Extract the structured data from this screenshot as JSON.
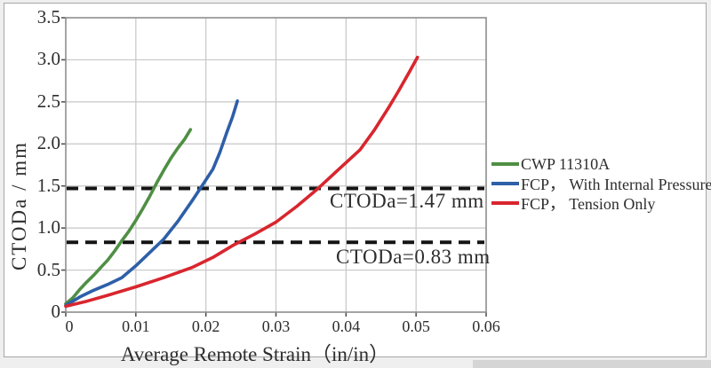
{
  "chart_data": {
    "type": "line",
    "title": "",
    "xlabel": "Average Remote Strain（in/in）",
    "ylabel": "CTODa / mm",
    "xlim": [
      0,
      0.06
    ],
    "ylim": [
      0,
      3.5
    ],
    "grid": true,
    "legend_position": "right of plot",
    "xticks": [
      0,
      0.01,
      0.02,
      0.03,
      0.04,
      0.05,
      0.06
    ],
    "xtick_labels": [
      "0",
      "0.01",
      "0.02",
      "0.03",
      "0.04",
      "0.05",
      "0.06"
    ],
    "yticks": [
      0,
      0.5,
      1.0,
      1.5,
      2.0,
      2.5,
      3.0,
      3.5
    ],
    "ytick_labels": [
      "0",
      "0.5",
      "1.0",
      "1.5",
      "2.0",
      "2.5",
      "3.0",
      "3.5"
    ],
    "colors": {
      "grid": "#c7c7c7",
      "axis": "#8e8e8e",
      "tick": "#4a4a4a",
      "reference_line": "#141414",
      "text": "#2d2d2d"
    },
    "series": [
      {
        "name": "CWP 11310A",
        "color": "#4f8f44",
        "points": [
          [
            0,
            0.1
          ],
          [
            0.001,
            0.17
          ],
          [
            0.002,
            0.27
          ],
          [
            0.003,
            0.36
          ],
          [
            0.004,
            0.44
          ],
          [
            0.005,
            0.53
          ],
          [
            0.006,
            0.62
          ],
          [
            0.007,
            0.73
          ],
          [
            0.008,
            0.85
          ],
          [
            0.009,
            0.96
          ],
          [
            0.01,
            1.09
          ],
          [
            0.011,
            1.23
          ],
          [
            0.012,
            1.38
          ],
          [
            0.013,
            1.54
          ],
          [
            0.014,
            1.69
          ],
          [
            0.015,
            1.83
          ],
          [
            0.016,
            1.95
          ],
          [
            0.017,
            2.06
          ],
          [
            0.0178,
            2.17
          ]
        ]
      },
      {
        "name": "FCP， With Internal Pressure",
        "color": "#2e5fa8",
        "points": [
          [
            0,
            0.08
          ],
          [
            0.002,
            0.18
          ],
          [
            0.004,
            0.26
          ],
          [
            0.006,
            0.33
          ],
          [
            0.008,
            0.41
          ],
          [
            0.01,
            0.55
          ],
          [
            0.012,
            0.71
          ],
          [
            0.014,
            0.87
          ],
          [
            0.016,
            1.08
          ],
          [
            0.018,
            1.32
          ],
          [
            0.0196,
            1.52
          ],
          [
            0.021,
            1.7
          ],
          [
            0.022,
            1.9
          ],
          [
            0.023,
            2.14
          ],
          [
            0.0238,
            2.32
          ],
          [
            0.0245,
            2.51
          ]
        ]
      },
      {
        "name": "FCP， Tension Only",
        "color": "#d8262e",
        "points": [
          [
            0,
            0.07
          ],
          [
            0.003,
            0.13
          ],
          [
            0.006,
            0.2
          ],
          [
            0.01,
            0.3
          ],
          [
            0.014,
            0.41
          ],
          [
            0.018,
            0.53
          ],
          [
            0.021,
            0.65
          ],
          [
            0.024,
            0.8
          ],
          [
            0.027,
            0.93
          ],
          [
            0.03,
            1.07
          ],
          [
            0.033,
            1.26
          ],
          [
            0.036,
            1.47
          ],
          [
            0.039,
            1.7
          ],
          [
            0.042,
            1.93
          ],
          [
            0.044,
            2.16
          ],
          [
            0.046,
            2.42
          ],
          [
            0.0475,
            2.63
          ],
          [
            0.049,
            2.85
          ],
          [
            0.0502,
            3.03
          ]
        ]
      }
    ],
    "reference_lines": [
      {
        "value": 1.47,
        "label": "CTODa=1.47 mm",
        "style": "dashed",
        "color": "#141414"
      },
      {
        "value": 0.83,
        "label": "CTODa=0.83 mm",
        "style": "dashed",
        "color": "#141414"
      }
    ]
  }
}
